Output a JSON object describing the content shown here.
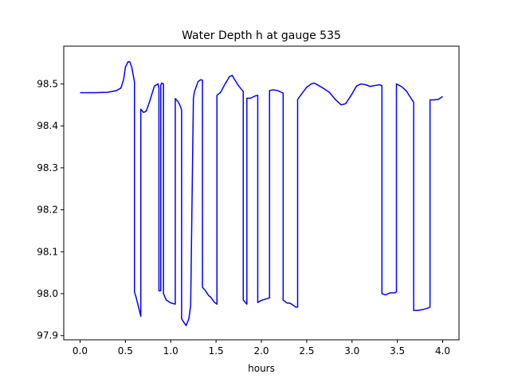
{
  "chart_data": {
    "type": "line",
    "title": "Water Depth h at gauge 535",
    "xlabel": "hours",
    "ylabel": "",
    "xlim": [
      -0.18,
      4.18
    ],
    "ylim": [
      97.89,
      98.59
    ],
    "xticks": [
      0.0,
      0.5,
      1.0,
      1.5,
      2.0,
      2.5,
      3.0,
      3.5,
      4.0
    ],
    "xtick_labels": [
      "0.0",
      "0.5",
      "1.0",
      "1.5",
      "2.0",
      "2.5",
      "3.0",
      "3.5",
      "4.0"
    ],
    "yticks": [
      97.9,
      98.0,
      98.1,
      98.2,
      98.3,
      98.4,
      98.5
    ],
    "ytick_labels": [
      "97.9",
      "98.0",
      "98.1",
      "98.2",
      "98.3",
      "98.4",
      "98.5"
    ],
    "grid": false,
    "series": [
      {
        "color": "#0000ff",
        "x": [
          0.0,
          0.15,
          0.3,
          0.4,
          0.45,
          0.48,
          0.5,
          0.53,
          0.55,
          0.57,
          0.6,
          0.6,
          0.62,
          0.67,
          0.67,
          0.7,
          0.73,
          0.77,
          0.82,
          0.86,
          0.87,
          0.87,
          0.89,
          0.89,
          0.9,
          0.92,
          0.92,
          0.95,
          1.0,
          1.05,
          1.05,
          1.08,
          1.1,
          1.12,
          1.12,
          1.15,
          1.17,
          1.2,
          1.22,
          1.25,
          1.26,
          1.3,
          1.33,
          1.35,
          1.35,
          1.38,
          1.42,
          1.44,
          1.48,
          1.51,
          1.51,
          1.55,
          1.6,
          1.65,
          1.68,
          1.7,
          1.75,
          1.8,
          1.8,
          1.84,
          1.84,
          1.88,
          1.94,
          1.96,
          1.96,
          2.0,
          2.06,
          2.09,
          2.09,
          2.13,
          2.18,
          2.22,
          2.24,
          2.24,
          2.28,
          2.32,
          2.38,
          2.4,
          2.4,
          2.45,
          2.5,
          2.55,
          2.58,
          2.6,
          2.68,
          2.75,
          2.82,
          2.88,
          2.93,
          3.0,
          3.05,
          3.1,
          3.15,
          3.2,
          3.25,
          3.3,
          3.33,
          3.33,
          3.37,
          3.42,
          3.47,
          3.49,
          3.49,
          3.55,
          3.6,
          3.65,
          3.68,
          3.68,
          3.72,
          3.78,
          3.84,
          3.86,
          3.86,
          3.9,
          3.95,
          4.0
        ],
        "y": [
          98.479,
          98.479,
          98.48,
          98.484,
          98.49,
          98.51,
          98.54,
          98.553,
          98.552,
          98.54,
          98.505,
          98.004,
          97.99,
          97.946,
          98.44,
          98.432,
          98.435,
          98.46,
          98.495,
          98.5,
          98.49,
          98.007,
          98.007,
          98.497,
          98.502,
          98.5,
          98.0,
          97.985,
          97.978,
          97.975,
          98.465,
          98.458,
          98.45,
          98.438,
          97.94,
          97.93,
          97.924,
          97.94,
          97.972,
          98.464,
          98.48,
          98.505,
          98.51,
          98.509,
          98.015,
          98.008,
          97.995,
          97.992,
          97.98,
          97.975,
          98.473,
          98.48,
          98.5,
          98.518,
          98.52,
          98.512,
          98.495,
          98.482,
          97.985,
          97.975,
          98.466,
          98.466,
          98.472,
          98.473,
          97.979,
          97.984,
          97.988,
          97.99,
          98.484,
          98.486,
          98.484,
          98.48,
          98.478,
          97.985,
          97.978,
          97.977,
          97.968,
          97.968,
          98.463,
          98.478,
          98.492,
          98.5,
          98.502,
          98.5,
          98.49,
          98.48,
          98.462,
          98.45,
          98.453,
          98.476,
          98.495,
          98.5,
          98.498,
          98.494,
          98.496,
          98.498,
          98.496,
          98.0,
          97.997,
          98.002,
          98.002,
          98.004,
          98.5,
          98.493,
          98.483,
          98.466,
          98.456,
          97.96,
          97.96,
          97.962,
          97.966,
          97.968,
          98.462,
          98.462,
          98.463,
          98.47
        ]
      }
    ]
  }
}
